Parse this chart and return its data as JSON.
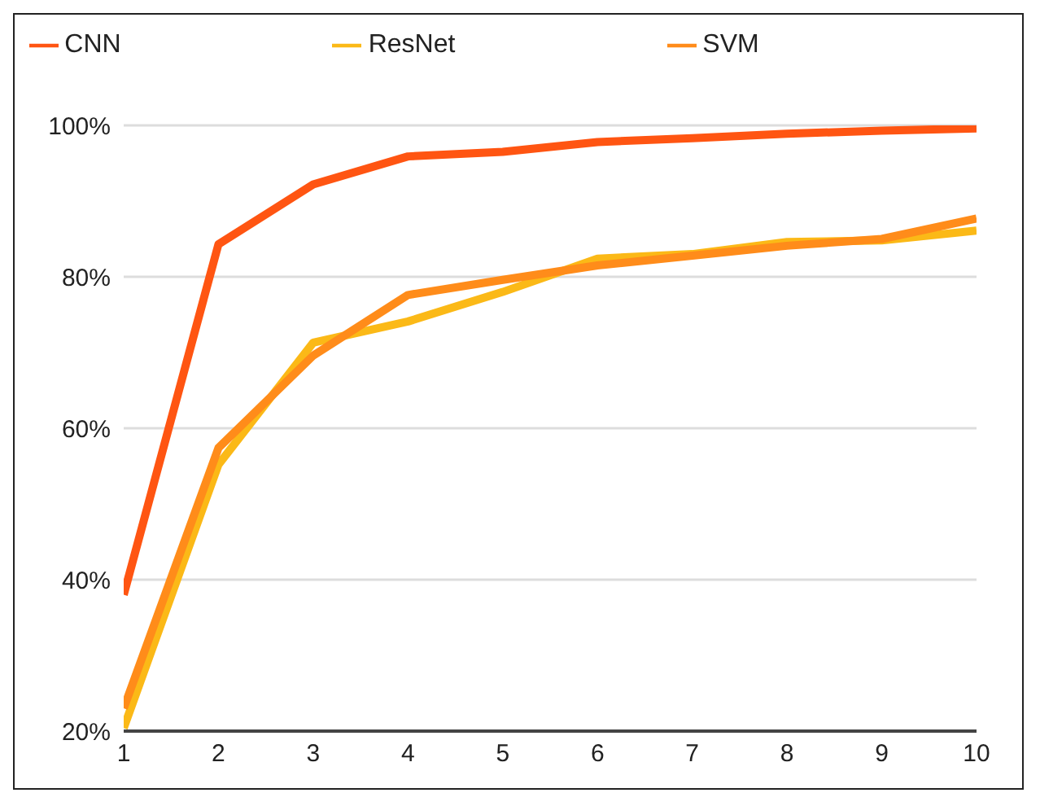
{
  "chart_data": {
    "type": "line",
    "x": [
      1,
      2,
      3,
      4,
      5,
      6,
      7,
      8,
      9,
      10
    ],
    "series": [
      {
        "name": "ResNet",
        "color": "#fbb917",
        "values": [
          20.4,
          55.2,
          71.3,
          74.1,
          78,
          82.4,
          83,
          84.6,
          84.8,
          86.1
        ]
      },
      {
        "name": "SVM",
        "color": "#ff8c1a",
        "values": [
          23,
          57.4,
          69.6,
          77.6,
          79.6,
          81.5,
          82.8,
          84.1,
          85,
          87.7
        ]
      },
      {
        "name": "CNN",
        "color": "#ff5512",
        "values": [
          38,
          84.3,
          92.2,
          95.9,
          96.5,
          97.8,
          98.3,
          98.9,
          99.3,
          99.6
        ]
      }
    ],
    "xlim": [
      1,
      10
    ],
    "xticks": [
      1,
      2,
      3,
      4,
      5,
      6,
      7,
      8,
      9,
      10
    ],
    "ylim": [
      20,
      100
    ],
    "yticks": [
      {
        "value": 20,
        "label": "20%"
      },
      {
        "value": 40,
        "label": "40%"
      },
      {
        "value": 60,
        "label": "60%"
      },
      {
        "value": 80,
        "label": "80%"
      },
      {
        "value": 100,
        "label": "100%"
      }
    ],
    "grid": "y",
    "legend": "top",
    "marker": "none",
    "line_style": "solid"
  }
}
